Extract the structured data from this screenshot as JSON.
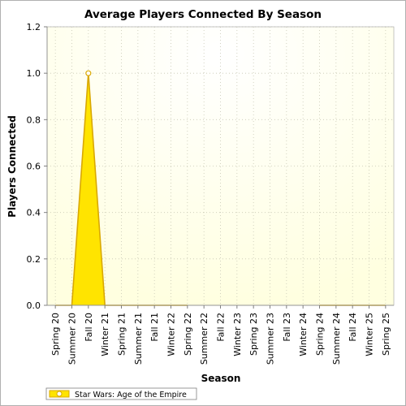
{
  "chart_data": {
    "type": "area",
    "title": "Average Players Connected By Season",
    "xlabel": "Season",
    "ylabel": "Players Connected",
    "categories": [
      "Spring 20",
      "Summer 20",
      "Fall 20",
      "Winter 21",
      "Spring 21",
      "Summer 21",
      "Fall 21",
      "Winter 22",
      "Spring 22",
      "Summer 22",
      "Fall 22",
      "Winter 23",
      "Spring 23",
      "Summer 23",
      "Fall 23",
      "Winter 24",
      "Spring 24",
      "Summer 24",
      "Fall 24",
      "Winter 25",
      "Spring 25"
    ],
    "ylim": [
      0,
      1.2
    ],
    "yticks": [
      "0.0",
      "0.2",
      "0.4",
      "0.6",
      "0.8",
      "1.0",
      "1.2"
    ],
    "series": [
      {
        "name": "Star Wars: Age of the Empire",
        "values": [
          0,
          0,
          1.0,
          0,
          0,
          0,
          0,
          0,
          0,
          null,
          null,
          null,
          null,
          null,
          null,
          null,
          0,
          0,
          0,
          0,
          0
        ],
        "color": "#ffe400",
        "stroke": "#d9a800"
      }
    ],
    "grid": true,
    "legend_position": "bottom-left",
    "plot_background": "#ffffe8"
  }
}
